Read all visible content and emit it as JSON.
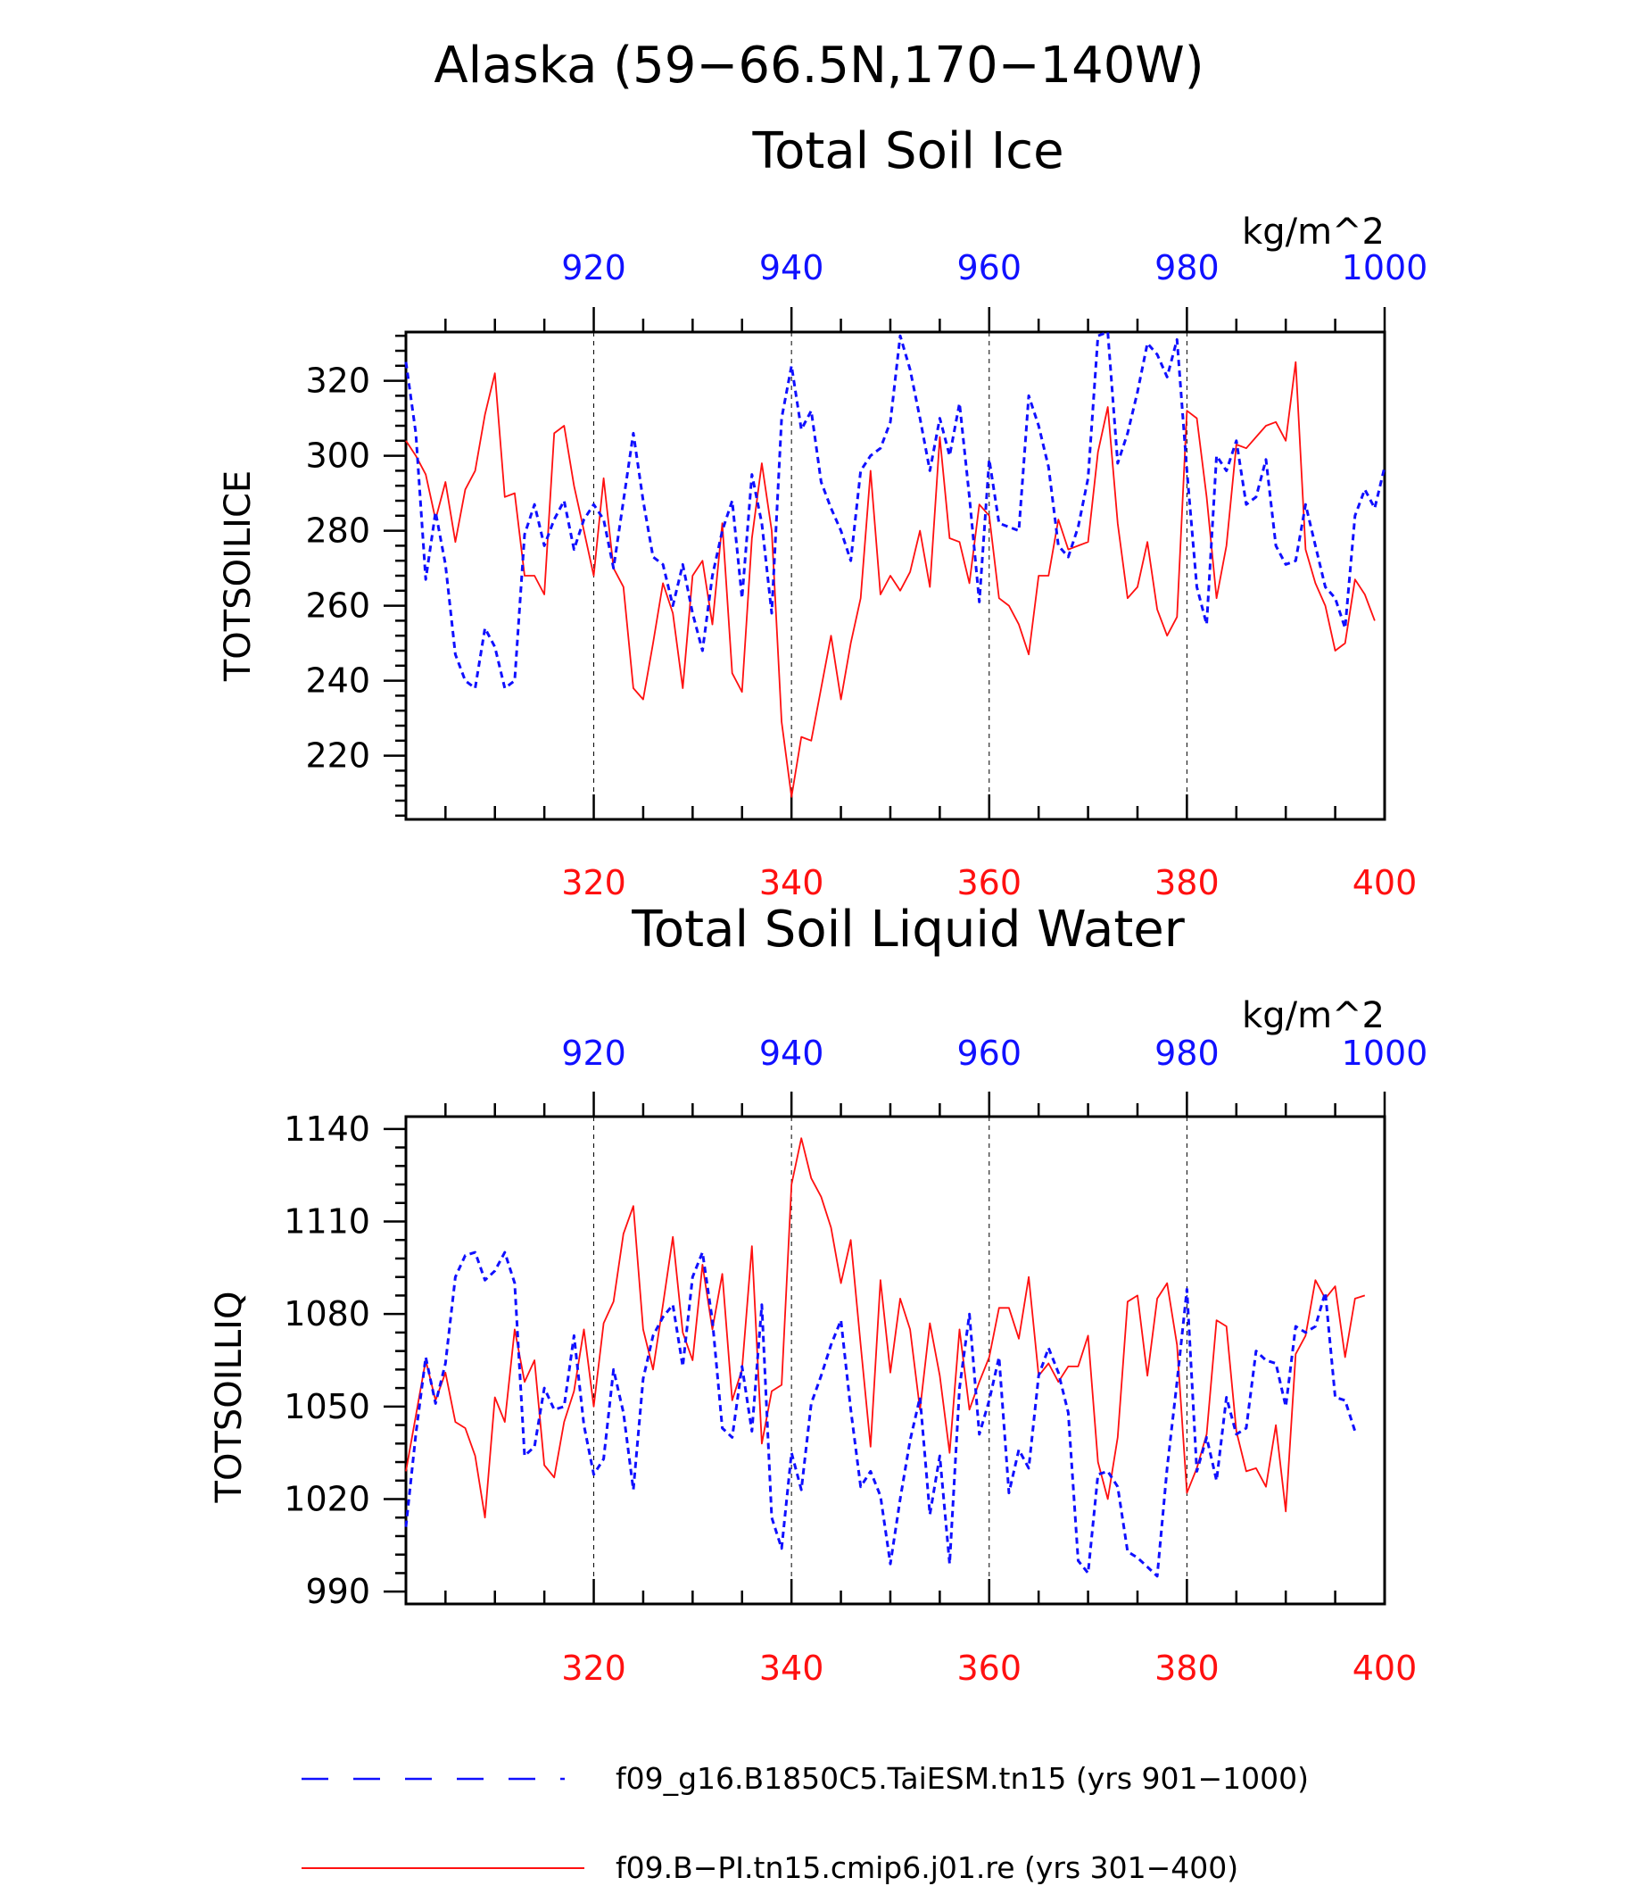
{
  "title": "Alaska (59−66.5N,170−140W)",
  "colors": {
    "blue": "#1010ff",
    "red": "#ff1010",
    "axis": "#000000"
  },
  "legend": {
    "blue_label": "f09_g16.B1850C5.TaiESM.tn15 (yrs 901−1000)",
    "red_label": "f09.B−PI.tn15.cmip6.j01.re (yrs 301−400)"
  },
  "chart_data": [
    {
      "type": "line",
      "title": "Total Soil Ice",
      "ylabel": "TOTSOILICE",
      "units": "kg/m^2",
      "ylim": [
        203,
        333
      ],
      "yticks": [
        220,
        240,
        260,
        280,
        300,
        320
      ],
      "bottom_axis": {
        "range": [
          301,
          400
        ],
        "ticks": [
          320,
          340,
          360,
          380,
          400
        ],
        "color": "red"
      },
      "top_axis": {
        "range": [
          901,
          1000
        ],
        "ticks": [
          920,
          940,
          960,
          980,
          1000
        ],
        "color": "blue"
      },
      "grid_x": [
        320,
        340,
        360,
        380
      ],
      "series": [
        {
          "name": "f09.B−PI.tn15.cmip6.j01.re (yrs 301−400)",
          "color": "red",
          "style": "solid",
          "x_start": 301,
          "values": [
            304,
            300,
            295,
            283,
            293,
            277,
            291,
            296,
            311,
            322,
            289,
            290,
            268,
            268,
            263,
            306,
            308,
            292,
            280,
            268,
            294,
            270,
            265,
            238,
            235,
            250,
            266,
            258,
            238,
            268,
            272,
            255,
            282,
            242,
            237,
            278,
            298,
            280,
            229,
            209,
            225,
            224,
            238,
            252,
            235,
            250,
            262,
            296,
            263,
            268,
            264,
            269,
            280,
            265,
            305,
            278,
            277,
            266,
            287,
            284,
            262,
            260,
            255,
            247,
            268,
            268,
            283,
            275,
            276,
            277,
            301,
            313,
            282,
            262,
            265,
            277,
            259,
            252,
            257,
            312,
            310,
            289,
            262,
            276,
            303,
            302,
            305,
            308,
            309,
            304,
            325,
            275,
            266,
            260,
            248,
            250,
            267,
            263,
            256
          ]
        },
        {
          "name": "f09_g16.B1850C5.TaiESM.tn15 (yrs 901−1000)",
          "color": "blue",
          "style": "dashed",
          "x_start": 901,
          "values": [
            325,
            306,
            267,
            285,
            271,
            247,
            240,
            238,
            254,
            249,
            238,
            240,
            279,
            287,
            276,
            283,
            288,
            275,
            283,
            287,
            283,
            270,
            288,
            306,
            288,
            273,
            271,
            260,
            271,
            258,
            248,
            268,
            280,
            288,
            262,
            295,
            282,
            258,
            310,
            324,
            307,
            312,
            293,
            286,
            280,
            272,
            296,
            300,
            302,
            309,
            332,
            323,
            310,
            296,
            310,
            300,
            314,
            289,
            261,
            299,
            282,
            281,
            280,
            316,
            308,
            297,
            276,
            273,
            281,
            294,
            332,
            333,
            298,
            306,
            317,
            330,
            327,
            321,
            331,
            296,
            265,
            255,
            300,
            296,
            304,
            287,
            289,
            299,
            276,
            271,
            272,
            287,
            276,
            265,
            262,
            254,
            284,
            291,
            286,
            297
          ]
        }
      ]
    },
    {
      "type": "line",
      "title": "Total Soil Liquid Water",
      "ylabel": "TOTSOILLIQ",
      "units": "kg/m^2",
      "ylim": [
        986,
        1144
      ],
      "yticks": [
        990,
        1020,
        1050,
        1080,
        1110,
        1140
      ],
      "bottom_axis": {
        "range": [
          301,
          400
        ],
        "ticks": [
          320,
          340,
          360,
          380,
          400
        ],
        "color": "red"
      },
      "top_axis": {
        "range": [
          901,
          1000
        ],
        "ticks": [
          920,
          940,
          960,
          980,
          1000
        ],
        "color": "blue"
      },
      "grid_x": [
        320,
        340,
        360,
        380
      ],
      "series": [
        {
          "name": "f09.B−PI.tn15.cmip6.j01.re (yrs 301−400)",
          "color": "red",
          "style": "solid",
          "x_start": 301,
          "values": [
            1029,
            1047,
            1065,
            1052,
            1061,
            1045,
            1043,
            1034,
            1014,
            1053,
            1045,
            1075,
            1058,
            1065,
            1031,
            1027,
            1045,
            1055,
            1075,
            1050,
            1077,
            1084,
            1106,
            1115,
            1075,
            1062,
            1083,
            1105,
            1074,
            1065,
            1096,
            1075,
            1093,
            1052,
            1062,
            1102,
            1038,
            1055,
            1057,
            1122,
            1137,
            1124,
            1118,
            1108,
            1090,
            1104,
            1070,
            1037,
            1091,
            1061,
            1085,
            1075,
            1049,
            1077,
            1060,
            1035,
            1075,
            1049,
            1058,
            1066,
            1082,
            1082,
            1072,
            1092,
            1060,
            1064,
            1058,
            1063,
            1063,
            1073,
            1032,
            1020,
            1040,
            1084,
            1086,
            1060,
            1085,
            1090,
            1070,
            1022,
            1030,
            1041,
            1078,
            1076,
            1042,
            1029,
            1030,
            1024,
            1044,
            1016,
            1067,
            1073,
            1091,
            1085,
            1089,
            1066,
            1085,
            1086
          ]
        },
        {
          "name": "f09_g16.B1850C5.TaiESM.tn15 (yrs 901−1000)",
          "color": "blue",
          "style": "dashed",
          "x_start": 901,
          "values": [
            1011,
            1041,
            1066,
            1051,
            1064,
            1092,
            1099,
            1100,
            1091,
            1094,
            1100,
            1090,
            1034,
            1037,
            1056,
            1049,
            1050,
            1073,
            1044,
            1028,
            1033,
            1062,
            1048,
            1023,
            1059,
            1073,
            1079,
            1083,
            1063,
            1092,
            1100,
            1078,
            1043,
            1040,
            1063,
            1042,
            1083,
            1014,
            1004,
            1035,
            1023,
            1051,
            1060,
            1070,
            1078,
            1049,
            1024,
            1029,
            1021,
            999,
            1020,
            1039,
            1053,
            1015,
            1034,
            999,
            1056,
            1080,
            1041,
            1052,
            1066,
            1022,
            1036,
            1030,
            1060,
            1069,
            1061,
            1048,
            1000,
            996,
            1028,
            1029,
            1024,
            1003,
            1001,
            998,
            995,
            1030,
            1058,
            1088,
            1029,
            1040,
            1026,
            1053,
            1041,
            1043,
            1068,
            1065,
            1064,
            1050,
            1076,
            1074,
            1076,
            1087,
            1053,
            1052,
            1042
          ]
        }
      ]
    }
  ]
}
